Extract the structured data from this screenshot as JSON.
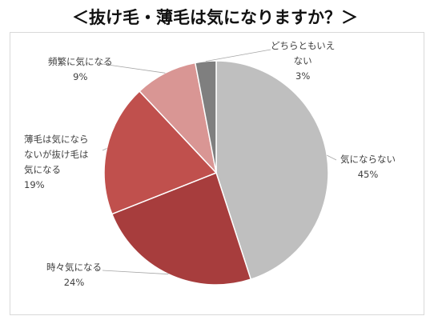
{
  "title": "＜抜け毛・薄毛は気になりますか？＞",
  "chart_data": {
    "type": "pie",
    "start_angle_deg": 0,
    "direction": "clockwise",
    "slices": [
      {
        "label": "気にならない",
        "value": 45,
        "value_label": "45%",
        "color": "#bfbfbf"
      },
      {
        "label": "時々気になる",
        "value": 24,
        "value_label": "24%",
        "color": "#a73d3d"
      },
      {
        "label": "薄毛は気にならないが抜け毛は気になる",
        "value": 19,
        "value_label": "19%",
        "color": "#c0504d"
      },
      {
        "label": "頻繁に気になる",
        "value": 9,
        "value_label": "9%",
        "color": "#d99694"
      },
      {
        "label": "どちらともいえない",
        "value": 3,
        "value_label": "3%",
        "color": "#7f7f7f"
      }
    ]
  },
  "labels": {
    "s0": {
      "lines": [
        "気にならない"
      ],
      "pct": "45%"
    },
    "s1": {
      "lines": [
        "時々気になる"
      ],
      "pct": "24%"
    },
    "s2": {
      "lines": [
        "薄毛は気になら",
        "ないが抜け毛は",
        "気になる"
      ],
      "pct": "19%"
    },
    "s3": {
      "lines": [
        "頻繁に気になる"
      ],
      "pct": "9%"
    },
    "s4": {
      "lines": [
        "どちらともいえ",
        "ない"
      ],
      "pct": "3%"
    }
  }
}
